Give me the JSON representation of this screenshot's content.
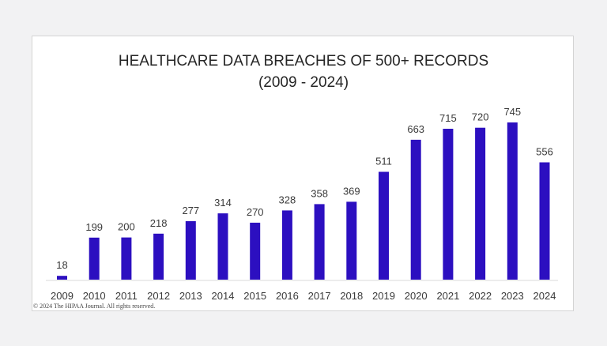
{
  "chart_data": {
    "type": "bar",
    "title_lines": [
      "HEALTHCARE DATA BREACHES OF 500+ RECORDS",
      "(2009 - 2024)"
    ],
    "xlabel": "",
    "ylabel": "",
    "categories": [
      "2009",
      "2010",
      "2011",
      "2012",
      "2013",
      "2014",
      "2015",
      "2016",
      "2017",
      "2018",
      "2019",
      "2020",
      "2021",
      "2022",
      "2023",
      "2024"
    ],
    "values": [
      18,
      199,
      200,
      218,
      277,
      314,
      270,
      328,
      358,
      369,
      511,
      663,
      715,
      720,
      745,
      556
    ],
    "ylim": [
      0,
      760
    ],
    "bar_color": "#2c0fc0",
    "grid": false,
    "legend": "none"
  },
  "footer": {
    "copyright": "© 2024 The HIPAA Journal. All rights reserved."
  }
}
